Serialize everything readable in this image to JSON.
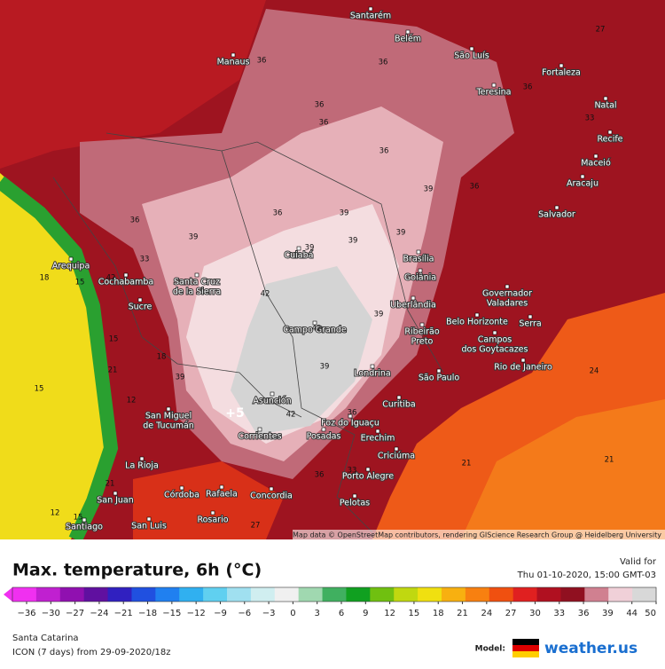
{
  "map": {
    "attribution": "Map data © OpenStreetMap contributors, rendering GIScience Research Group @ Heidelberg University",
    "cities": [
      {
        "lines": [
          "Santarém"
        ]
      },
      {
        "lines": [
          "Belém"
        ]
      },
      {
        "lines": [
          "São Luís"
        ]
      },
      {
        "lines": [
          "Fortaleza"
        ]
      },
      {
        "lines": [
          "Manaus"
        ]
      },
      {
        "lines": [
          "Teresina"
        ]
      },
      {
        "lines": [
          "Natal"
        ]
      },
      {
        "lines": [
          "Recife"
        ]
      },
      {
        "lines": [
          "Maceió"
        ]
      },
      {
        "lines": [
          "Aracaju"
        ]
      },
      {
        "lines": [
          "Salvador"
        ]
      },
      {
        "lines": [
          "Cuiabá"
        ]
      },
      {
        "lines": [
          "Brasília"
        ]
      },
      {
        "lines": [
          "Goiânia"
        ]
      },
      {
        "lines": [
          "Arequipa"
        ]
      },
      {
        "lines": [
          "Cochabamba"
        ]
      },
      {
        "lines": [
          "Santa Cruz",
          "de la Sierra"
        ]
      },
      {
        "lines": [
          "Sucre"
        ]
      },
      {
        "lines": [
          "Uberlândia"
        ]
      },
      {
        "lines": [
          "Governador",
          "Valadares"
        ]
      },
      {
        "lines": [
          "Campo Grande"
        ]
      },
      {
        "lines": [
          "Belo Horizonte"
        ]
      },
      {
        "lines": [
          "Ribeirão",
          "Preto"
        ]
      },
      {
        "lines": [
          "Serra"
        ]
      },
      {
        "lines": [
          "Campos",
          "dos Goytacazes"
        ]
      },
      {
        "lines": [
          "Rio de Janeiro"
        ]
      },
      {
        "lines": [
          "Londrina"
        ]
      },
      {
        "lines": [
          "São Paulo"
        ]
      },
      {
        "lines": [
          "Asunción"
        ]
      },
      {
        "lines": [
          "Curitiba"
        ]
      },
      {
        "lines": [
          "San Miguel",
          "de Tucumán"
        ]
      },
      {
        "lines": [
          "Foz do Iguaçu"
        ]
      },
      {
        "lines": [
          "Corrientes"
        ]
      },
      {
        "lines": [
          "Posadas"
        ]
      },
      {
        "lines": [
          "Erechim"
        ]
      },
      {
        "lines": [
          "Criciúma"
        ]
      },
      {
        "lines": [
          "La Rioja"
        ]
      },
      {
        "lines": [
          "Porto Alegre"
        ]
      },
      {
        "lines": [
          "Córdoba"
        ]
      },
      {
        "lines": [
          "Rafaela"
        ]
      },
      {
        "lines": [
          "Concordia"
        ]
      },
      {
        "lines": [
          "San Juan"
        ]
      },
      {
        "lines": [
          "Pelotas"
        ]
      },
      {
        "lines": [
          "Rosario"
        ]
      },
      {
        "lines": [
          "Santiago"
        ]
      },
      {
        "lines": [
          "San Luis"
        ]
      }
    ],
    "temp_labels": [
      "36",
      "36",
      "36",
      "36",
      "36",
      "36",
      "33",
      "36",
      "39",
      "39",
      "39",
      "36",
      "36",
      "39",
      "39",
      "39",
      "42",
      "39",
      "42",
      "33",
      "18",
      "15",
      "42",
      "15",
      "21",
      "15",
      "12",
      "18",
      "39",
      "+5",
      "42",
      "39",
      "36",
      "33",
      "36",
      "24",
      "21",
      "21",
      "27",
      "12",
      "15",
      "21",
      "27"
    ]
  },
  "footer": {
    "title": "Max. temperature, 6h (°C)",
    "valid_label": "Valid for",
    "valid_time": "Thu 01-10-2020, 15:00 GMT-03",
    "location": "Santa Catarina",
    "model_run": "ICON (7 days) from 29-09-2020/18z",
    "model_label": "Model:",
    "brand": "weather.us"
  },
  "colorbar": {
    "ticks": [
      {
        "value": -36,
        "label": "−36"
      },
      {
        "value": -30,
        "label": "−30"
      },
      {
        "value": -27,
        "label": "−27"
      },
      {
        "value": -24,
        "label": "−24"
      },
      {
        "value": -21,
        "label": "−21"
      },
      {
        "value": -18,
        "label": "−18"
      },
      {
        "value": -15,
        "label": "−15"
      },
      {
        "value": -12,
        "label": "−12"
      },
      {
        "value": -9,
        "label": "−9"
      },
      {
        "value": -6,
        "label": "−6"
      },
      {
        "value": -3,
        "label": "−3"
      },
      0,
      3,
      6,
      9,
      12,
      15,
      18,
      21,
      24,
      27,
      30,
      33,
      36,
      39,
      44,
      50
    ],
    "colors": [
      "#f030f0",
      "#c020d0",
      "#9010b0",
      "#6010a0",
      "#3020c0",
      "#2050e0",
      "#2080f0",
      "#30b0f0",
      "#60d0f0",
      "#a0e0f0",
      "#d0eef0",
      "#f0f0f0",
      "#a0d8b0",
      "#40b060",
      "#10a020",
      "#70c010",
      "#c0d810",
      "#f0e010",
      "#f8b010",
      "#f88010",
      "#f05010",
      "#e02020",
      "#b01020",
      "#901020",
      "#d08090",
      "#f0d0d8",
      "#d8d8d8"
    ]
  }
}
